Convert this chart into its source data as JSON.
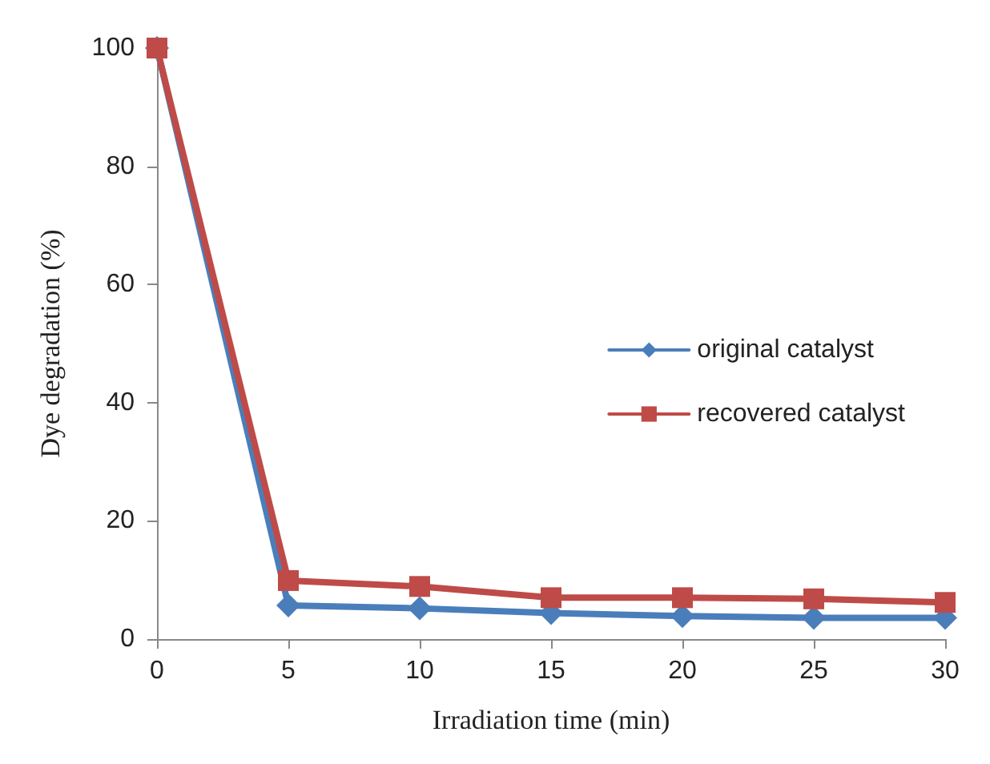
{
  "chart_data": {
    "type": "line",
    "xlabel": "Irradiation time (min)",
    "ylabel": "Dye degradation (%)",
    "x": [
      0,
      5,
      10,
      15,
      20,
      25,
      30
    ],
    "xlim": [
      0,
      30
    ],
    "xticks": [
      0,
      5,
      10,
      15,
      20,
      25,
      30
    ],
    "ylim": [
      0,
      100
    ],
    "yticks": [
      0,
      20,
      40,
      60,
      80,
      100
    ],
    "grid": false,
    "legend": "right",
    "line_style": "solid",
    "series": [
      {
        "name": "original catalyst",
        "color": "#4a7ebb",
        "marker": "diamond",
        "values": [
          100,
          5.7,
          5.2,
          4.4,
          3.9,
          3.6,
          3.6
        ]
      },
      {
        "name": "recovered catalyst",
        "color": "#be4b48",
        "marker": "square",
        "values": [
          100,
          9.9,
          8.9,
          7.0,
          7.0,
          6.8,
          6.2
        ]
      }
    ]
  }
}
